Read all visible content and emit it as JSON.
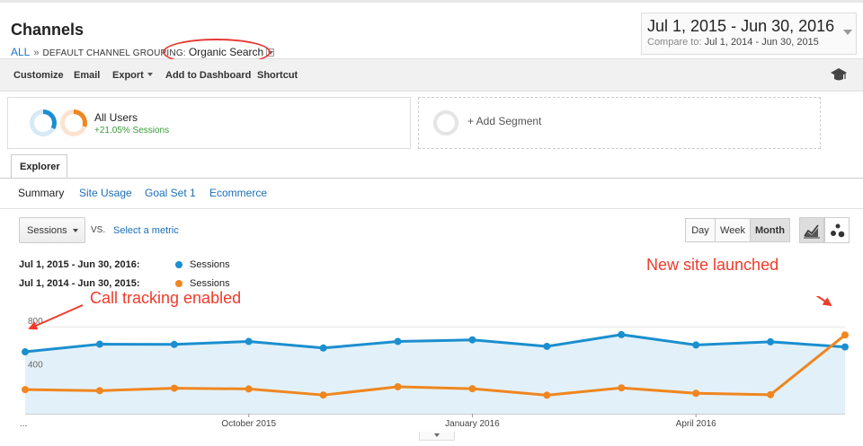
{
  "header": {
    "title": "Channels",
    "breadcrumb": {
      "all": "ALL",
      "separator": "»",
      "grouping": "DEFAULT CHANNEL GROUPING:",
      "value": "Organic Search"
    }
  },
  "date_range": {
    "primary": "Jul 1, 2015 - Jun 30, 2016",
    "compare_label": "Compare to:",
    "compare": "Jul 1, 2014 - Jun 30, 2015"
  },
  "toolbar": {
    "customize": "Customize",
    "email": "Email",
    "export": "Export",
    "add_dashboard": "Add to Dashboard",
    "shortcut": "Shortcut",
    "icon": "graduation-cap-icon"
  },
  "segments": {
    "active": {
      "name": "All Users",
      "sub": "+21.05% Sessions"
    },
    "add": "+ Add Segment"
  },
  "tabs": {
    "explorer": "Explorer",
    "subtabs": [
      "Summary",
      "Site Usage",
      "Goal Set 1",
      "Ecommerce"
    ]
  },
  "controls": {
    "metric": "Sessions",
    "vs": "VS.",
    "select_metric": "Select a metric",
    "periods": [
      "Day",
      "Week",
      "Month"
    ],
    "active_period": "Month"
  },
  "legend": [
    {
      "range": "Jul 1, 2015 - Jun 30, 2016:",
      "name": "Sessions",
      "color": "#1b8fcf"
    },
    {
      "range": "Jul 1, 2014 - Jun 30, 2015:",
      "name": "Sessions",
      "color": "#f0861f"
    }
  ],
  "annotations": {
    "call_tracking": "Call tracking enabled",
    "new_site": "New site launched",
    "color": "#f23a2a"
  },
  "chart_data": {
    "type": "line",
    "x_labels": [
      "...",
      "October 2015",
      "January 2016",
      "April 2016"
    ],
    "y_ticks": [
      "800",
      "400"
    ],
    "ylim": [
      0,
      1000
    ],
    "series": [
      {
        "name": "Sessions",
        "period": "Jul 1, 2015 - Jun 30, 2016",
        "color": "#1b8fcf",
        "area": true,
        "values": [
          570,
          640,
          638,
          665,
          605,
          665,
          680,
          620,
          728,
          633,
          662,
          615
        ]
      },
      {
        "name": "Sessions",
        "period": "Jul 1, 2014 - Jun 30, 2015",
        "color": "#f0861f",
        "area": false,
        "values": [
          222,
          212,
          235,
          228,
          172,
          248,
          230,
          170,
          238,
          188,
          175,
          725
        ]
      }
    ]
  }
}
